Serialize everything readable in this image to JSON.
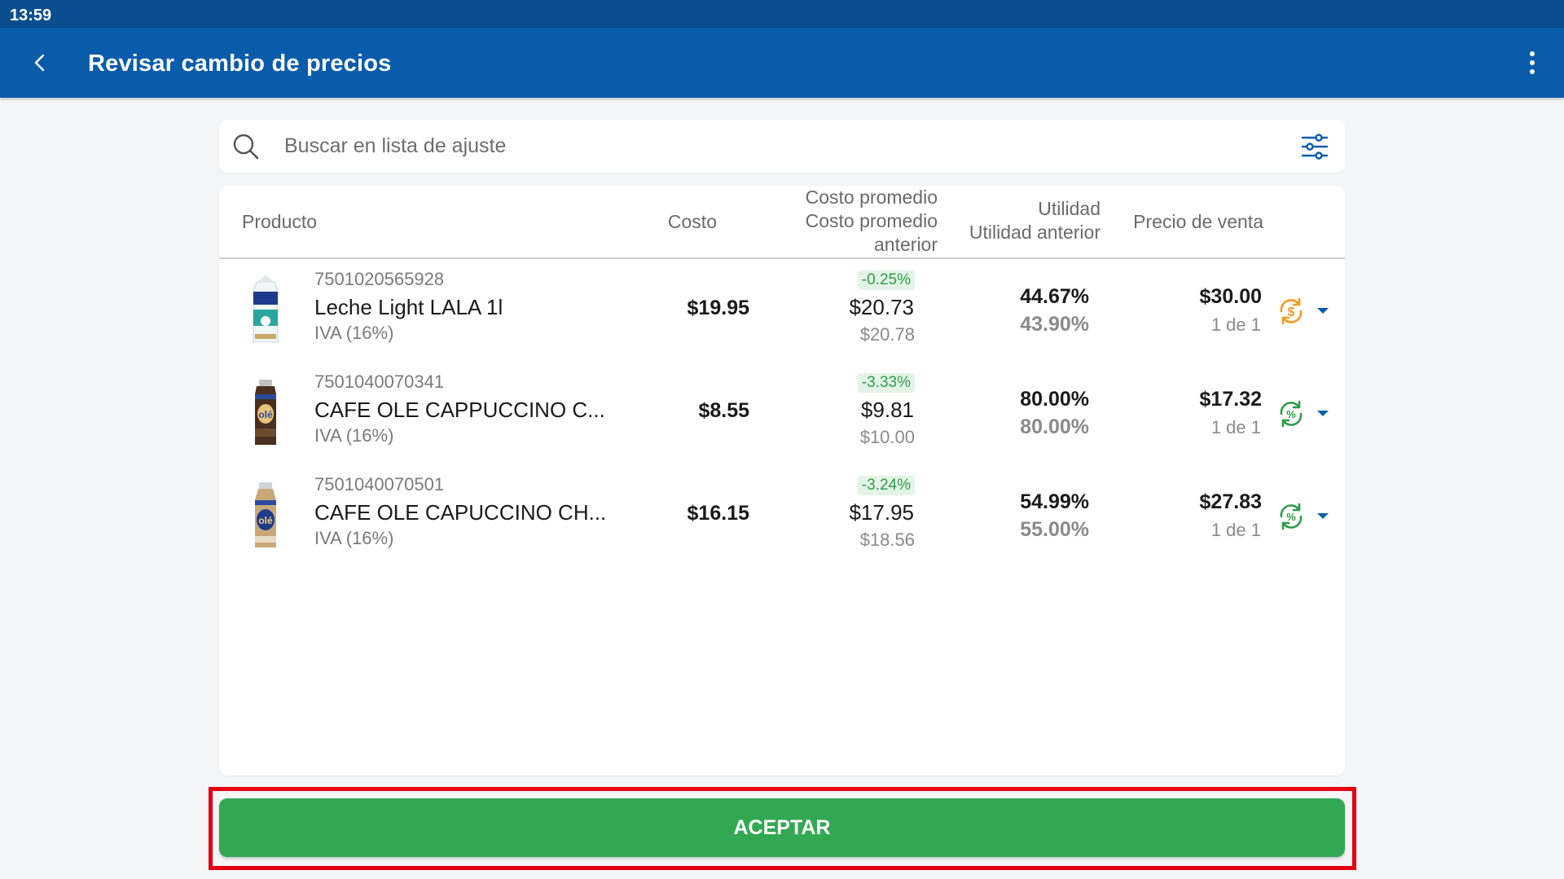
{
  "status_bar": {
    "time": "13:59"
  },
  "app_bar": {
    "title": "Revisar cambio de precios"
  },
  "search": {
    "placeholder": "Buscar en lista de ajuste"
  },
  "table": {
    "headers": {
      "producto": "Producto",
      "costo": "Costo",
      "costo_promedio": "Costo promedio",
      "costo_promedio_anterior": "Costo promedio anterior",
      "utilidad": "Utilidad",
      "utilidad_anterior": "Utilidad anterior",
      "precio_venta": "Precio de venta"
    },
    "rows": [
      {
        "sku": "7501020565928",
        "name": "Leche Light LALA 1l",
        "tax": "IVA (16%)",
        "costo": "$19.95",
        "change": "-0.25%",
        "costo_promedio": "$20.73",
        "costo_promedio_anterior": "$20.78",
        "utilidad": "44.67%",
        "utilidad_anterior": "43.90%",
        "precio_venta": "$30.00",
        "page": "1 de 1",
        "status_icon": "price-sync-icon",
        "status_color": "#f39a1d",
        "image_icon": "milk-carton-icon"
      },
      {
        "sku": "7501040070341",
        "name": "CAFE OLE CAPPUCCINO C...",
        "tax": "IVA (16%)",
        "costo": "$8.55",
        "change": "-3.33%",
        "costo_promedio": "$9.81",
        "costo_promedio_anterior": "$10.00",
        "utilidad": "80.00%",
        "utilidad_anterior": "80.00%",
        "precio_venta": "$17.32",
        "page": "1 de 1",
        "status_icon": "percent-sync-icon",
        "status_color": "#2f9c48",
        "image_icon": "coffee-can-icon"
      },
      {
        "sku": "7501040070501",
        "name": "CAFE OLE CAPUCCINO CH...",
        "tax": "IVA (16%)",
        "costo": "$16.15",
        "change": "-3.24%",
        "costo_promedio": "$17.95",
        "costo_promedio_anterior": "$18.56",
        "utilidad": "54.99%",
        "utilidad_anterior": "55.00%",
        "precio_venta": "$27.83",
        "page": "1 de 1",
        "status_icon": "percent-sync-icon",
        "status_color": "#2f9c48",
        "image_icon": "coffee-bottle-icon"
      }
    ]
  },
  "footer": {
    "accept_label": "ACEPTAR"
  },
  "colors": {
    "status_bar": "#0a4e8f",
    "app_bar": "#0a5cab",
    "accept_button": "#33a853",
    "highlight_border": "#e3000f",
    "badge_text": "#2f9c48"
  }
}
